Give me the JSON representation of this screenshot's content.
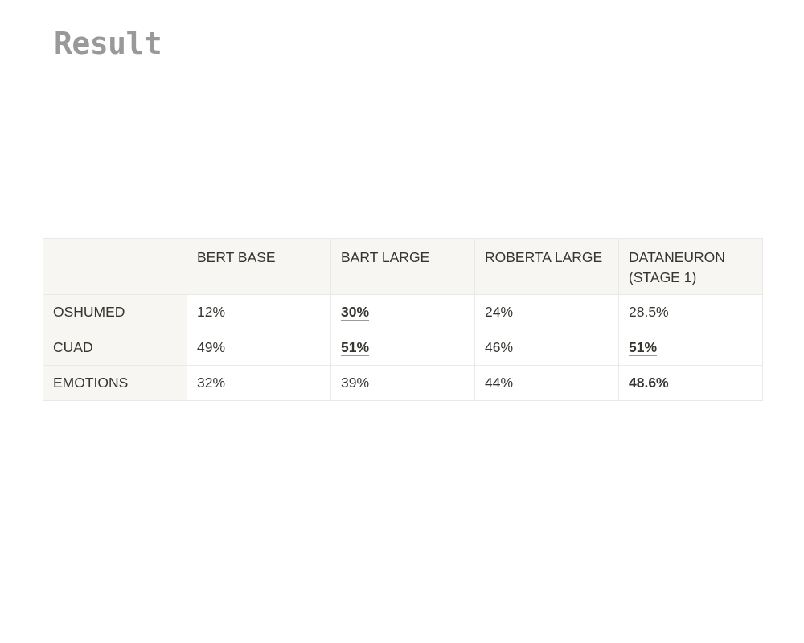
{
  "page": {
    "title": "Result"
  },
  "table": {
    "headers": [
      "",
      "BERT BASE",
      "BART LARGE",
      "ROBERTA LARGE",
      "DATANEURON (STAGE 1)"
    ],
    "rows": [
      {
        "label": "OSHUMED",
        "cells": [
          {
            "value": "12%",
            "emphasized": false
          },
          {
            "value": "30%",
            "emphasized": true
          },
          {
            "value": "24%",
            "emphasized": false
          },
          {
            "value": "28.5%",
            "emphasized": false
          }
        ]
      },
      {
        "label": "CUAD",
        "cells": [
          {
            "value": "49%",
            "emphasized": false
          },
          {
            "value": "51%",
            "emphasized": true
          },
          {
            "value": "46%",
            "emphasized": false
          },
          {
            "value": "51%",
            "emphasized": true
          }
        ]
      },
      {
        "label": "EMOTIONS",
        "cells": [
          {
            "value": "32%",
            "emphasized": false
          },
          {
            "value": "39%",
            "emphasized": false
          },
          {
            "value": "44%",
            "emphasized": false
          },
          {
            "value": "48.6%",
            "emphasized": true
          }
        ]
      }
    ]
  }
}
